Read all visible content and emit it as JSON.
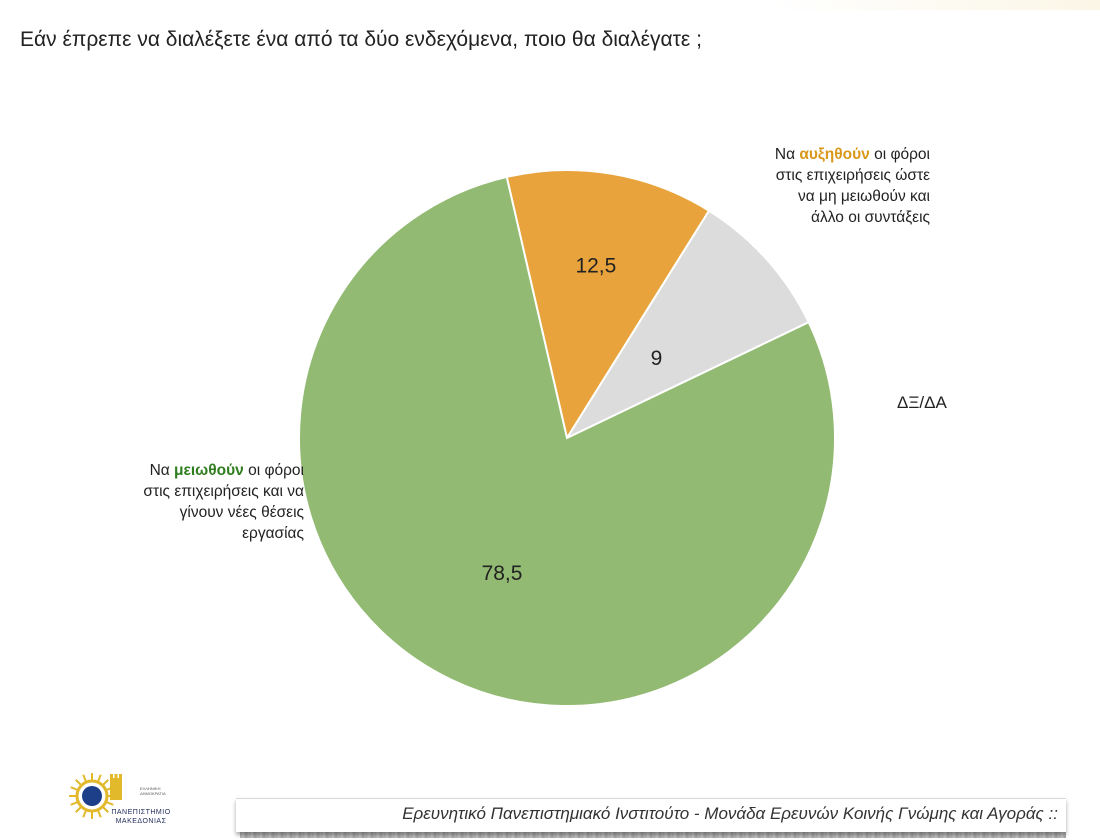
{
  "question": "Εάν έπρεπε να διαλέξετε ένα από τα δύο ενδεχόμενα, ποιο θα διαλέγατε ;",
  "chart_data": {
    "type": "pie",
    "title": "Εάν έπρεπε να διαλέξετε ένα από τα δύο ενδεχόμενα, ποιο θα διαλέγατε ;",
    "start_angle_deg": 347,
    "direction": "clockwise",
    "slices": [
      {
        "key": "increase",
        "value": 12.5,
        "value_label": "12,5",
        "color": "#E8A33C",
        "label_prefix": "Να ",
        "label_highlight": "αυξηθούν",
        "label_highlight_color": "#D9981C",
        "label_suffix": " οι φόροι",
        "label_lines": [
          "στις επιχειρήσεις ώστε",
          "να μη μειωθούν και",
          "άλλο οι συντάξεις"
        ]
      },
      {
        "key": "dk",
        "value": 9,
        "value_label": "9",
        "color": "#DCDCDC",
        "label_prefix": "",
        "label_highlight": "",
        "label_highlight_color": "#222222",
        "label_suffix": "ΔΞ/ΔΑ",
        "label_lines": []
      },
      {
        "key": "decrease",
        "value": 78.5,
        "value_label": "78,5",
        "color": "#92BA72",
        "label_prefix": "Να ",
        "label_highlight": "μειωθούν",
        "label_highlight_color": "#2E7D1E",
        "label_suffix": " οι φόροι",
        "label_lines": [
          "στις επιχειρήσεις και να",
          "γίνουν νέες θέσεις",
          "εργασίας"
        ]
      }
    ]
  },
  "logo": {
    "caption_line1": "ΠΑΝΕΠΙΣΤΗΜΙΟ",
    "caption_line2": "ΜΑΚΕΔΟΝΙΑΣ",
    "small_line1": "ΕΛΛΗΝΙΚΗ",
    "small_line2": "ΔΗΜΟΚΡΑΤΙΑ",
    "primary_color": "#1d3f8a",
    "accent_color": "#e2b92a"
  },
  "footer": {
    "text": "Ερευνητικό Πανεπιστημιακό Ινστιτούτο - Μονάδα Ερευνών Κοινής Γνώμης και Αγοράς ::"
  }
}
